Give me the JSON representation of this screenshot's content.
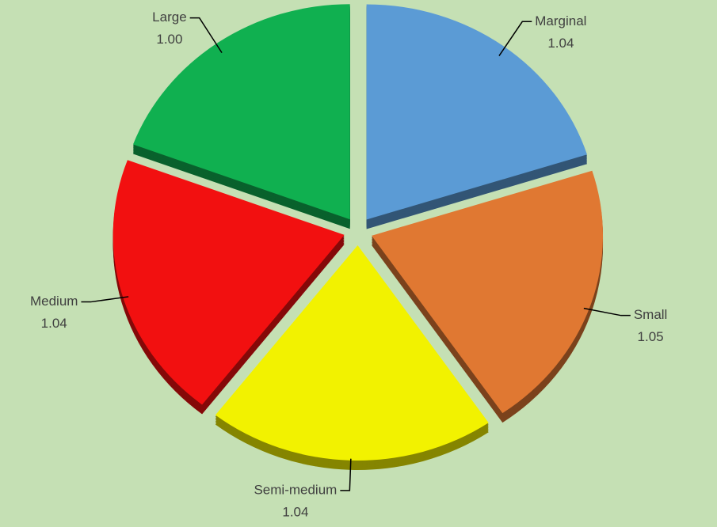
{
  "chart_data": {
    "type": "pie",
    "categories": [
      "Marginal",
      "Small",
      "Semi-medium",
      "Medium",
      "Large"
    ],
    "values": [
      1.04,
      1.05,
      1.04,
      1.04,
      1.0
    ],
    "value_labels": [
      "1.04",
      "1.05",
      "1.04",
      "1.04",
      "1.00"
    ],
    "colors": [
      "#5b9bd5",
      "#e07832",
      "#f2f200",
      "#f21010",
      "#10b050"
    ],
    "exploded": true,
    "three_d": true
  }
}
